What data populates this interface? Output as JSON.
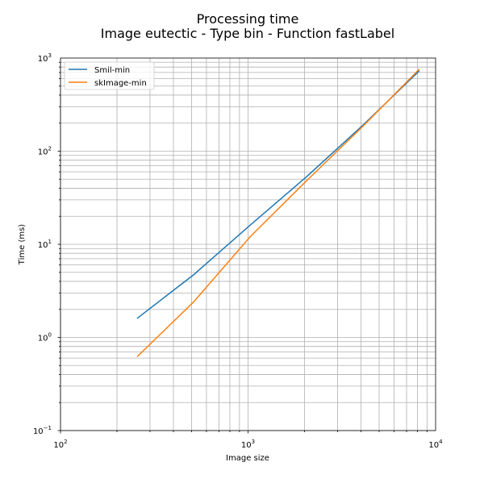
{
  "chart_data": {
    "type": "line",
    "title": "Processing time",
    "subtitle": "Image eutectic - Type bin - Function fastLabel",
    "xlabel": "Image size",
    "ylabel": "Time (ms)",
    "xscale": "log",
    "yscale": "log",
    "xlim": [
      100,
      10000
    ],
    "ylim": [
      0.1,
      1000
    ],
    "grid": "both-major-and-minor",
    "legend_position": "top-left",
    "x_ticks": [
      {
        "value": 100,
        "base": "10",
        "exp": "2"
      },
      {
        "value": 1000,
        "base": "10",
        "exp": "3"
      },
      {
        "value": 10000,
        "base": "10",
        "exp": "4"
      }
    ],
    "y_ticks": [
      {
        "value": 0.1,
        "base": "10",
        "exp": "−1"
      },
      {
        "value": 1,
        "base": "10",
        "exp": "0"
      },
      {
        "value": 10,
        "base": "10",
        "exp": "1"
      },
      {
        "value": 100,
        "base": "10",
        "exp": "2"
      },
      {
        "value": 1000,
        "base": "10",
        "exp": "3"
      }
    ],
    "series": [
      {
        "name": "Smil-min",
        "color": "#1f77b4",
        "x": [
          256,
          512,
          1024,
          2048,
          4096,
          8192
        ],
        "y": [
          1.6,
          4.7,
          16,
          53,
          190,
          730
        ]
      },
      {
        "name": "skImage-min",
        "color": "#ff7f0e",
        "x": [
          256,
          512,
          1024,
          2048,
          4096,
          8192
        ],
        "y": [
          0.62,
          2.4,
          12,
          48,
          185,
          760
        ]
      }
    ]
  }
}
